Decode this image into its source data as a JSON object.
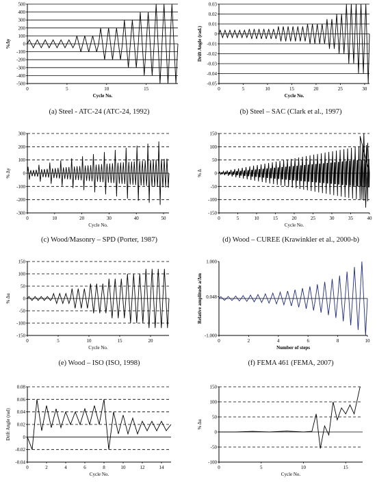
{
  "captions": [
    "(a) Steel - ATC-24 (ATC-24, 1992)",
    "(b) Steel – SAC (Clark et al., 1997)",
    "(c) Wood/Masonry – SPD (Porter, 1987)",
    "(d) Wood – CUREE (Krawinkler et al., 2000-b)",
    "(e) Wood – ISO (ISO, 1998)",
    "(f) FEMA 461 (FEMA, 2007)"
  ],
  "colors": {
    "line": "#000000",
    "blue": "#1f2a7a",
    "grid": "#000000"
  },
  "chart_data": [
    {
      "id": "a",
      "type": "line",
      "xlabel": "Cycle No.",
      "ylabel": "%Δy",
      "xlim": [
        0,
        19
      ],
      "ylim": [
        -500,
        500
      ],
      "xticks": [
        0,
        5,
        10,
        15
      ],
      "yticks": [
        -500,
        -400,
        -300,
        -200,
        -100,
        0,
        100,
        200,
        300,
        400,
        500
      ],
      "grid": "solid-horizontal",
      "amplitude_steps": [
        [
          0,
          50,
          6
        ],
        [
          6,
          100,
          3
        ],
        [
          9,
          200,
          3
        ],
        [
          12,
          300,
          2
        ],
        [
          14,
          400,
          2
        ],
        [
          16,
          500,
          3
        ]
      ]
    },
    {
      "id": "b",
      "type": "line",
      "xlabel": "Cycle No.",
      "ylabel": "Drift Angle (rad.)",
      "xlim": [
        0,
        31
      ],
      "ylim": [
        -0.05,
        0.03
      ],
      "xticks": [
        0,
        5,
        10,
        15,
        20,
        25,
        30
      ],
      "yticks": [
        -0.05,
        -0.04,
        -0.03,
        -0.02,
        -0.01,
        0,
        0.01,
        0.02,
        0.03
      ],
      "ytick_labels": [
        "-0.05",
        "-0.04",
        "-0.03",
        "-0.02",
        "-0.01",
        "0",
        "0.01",
        "0.02",
        "0.03"
      ],
      "grid": "solid-horizontal",
      "amplitude_steps": [
        [
          0,
          0.00375,
          6
        ],
        [
          6,
          0.005,
          6
        ],
        [
          12,
          0.0075,
          6
        ],
        [
          18,
          0.01,
          4
        ],
        [
          22,
          0.015,
          2
        ],
        [
          24,
          0.02,
          2
        ],
        [
          26,
          0.03,
          2
        ],
        [
          28,
          0.04,
          2
        ],
        [
          30,
          0.05,
          1
        ]
      ]
    },
    {
      "id": "c",
      "type": "line",
      "xlabel": "Cycle No.",
      "ylabel": "% Δy",
      "xlim": [
        0,
        52
      ],
      "ylim": [
        -300,
        300
      ],
      "xticks": [
        0,
        10,
        20,
        30,
        40,
        50
      ],
      "yticks": [
        -300,
        -200,
        -100,
        0,
        100,
        200,
        300
      ],
      "grid": "dashed-horizontal"
    },
    {
      "id": "d",
      "type": "line",
      "xlabel": "Cycle No.",
      "ylabel": "% Δ",
      "xlim": [
        0,
        40
      ],
      "ylim": [
        -150,
        150
      ],
      "xticks": [
        0,
        5,
        10,
        15,
        20,
        25,
        30,
        35,
        40
      ],
      "yticks": [
        -150,
        -100,
        -50,
        0,
        50,
        100,
        150
      ],
      "grid": "dashed-horizontal"
    },
    {
      "id": "e",
      "type": "line",
      "xlabel": "Cycle No.",
      "ylabel": "% Δu",
      "xlim": [
        0,
        23
      ],
      "ylim": [
        -150,
        150
      ],
      "xticks": [
        0,
        5,
        10,
        15,
        20
      ],
      "yticks": [
        -150,
        -100,
        -50,
        0,
        50,
        100,
        150
      ],
      "grid": "dashed-horizontal"
    },
    {
      "id": "f",
      "type": "line",
      "xlabel": "Number of steps",
      "ylabel": "Relative amplitude a/Δm",
      "xlim": [
        0,
        10
      ],
      "ylim": [
        -1.0,
        1.0
      ],
      "xticks": [
        0,
        2,
        4,
        6,
        8,
        10
      ],
      "yticks": [
        -1.0,
        0.048,
        1.0
      ],
      "ytick_labels": [
        "-1.000",
        "0.048",
        "1.000"
      ],
      "grid": "none"
    },
    {
      "id": "g",
      "type": "line",
      "xlabel": "Cycle No.",
      "ylabel": "Drift Angle (rad)",
      "xlim": [
        0,
        15
      ],
      "ylim": [
        -0.04,
        0.08
      ],
      "xticks": [
        0,
        2,
        4,
        6,
        8,
        10,
        12,
        14
      ],
      "yticks": [
        -0.04,
        -0.02,
        0,
        0.02,
        0.04,
        0.06,
        0.08
      ],
      "ytick_labels": [
        "-0.04",
        "-0.02",
        "0",
        "0.02",
        "0.04",
        "0.06",
        "0.08"
      ],
      "grid": "dashed-horizontal",
      "points": [
        [
          0,
          0
        ],
        [
          0.5,
          -0.02
        ],
        [
          1,
          0.06
        ],
        [
          1.5,
          0.01
        ],
        [
          2,
          0.05
        ],
        [
          2.5,
          0.015
        ],
        [
          3,
          0.045
        ],
        [
          3.5,
          0.015
        ],
        [
          4,
          0.04
        ],
        [
          4.5,
          0.02
        ],
        [
          5,
          0.04
        ],
        [
          5.5,
          0.02
        ],
        [
          6,
          0.045
        ],
        [
          6.5,
          0.02
        ],
        [
          7,
          0.05
        ],
        [
          7.5,
          0.02
        ],
        [
          8,
          0.06
        ],
        [
          8.5,
          -0.02
        ],
        [
          9,
          0.04
        ],
        [
          9.5,
          0.005
        ],
        [
          10,
          0.035
        ],
        [
          10.5,
          0.005
        ],
        [
          11,
          0.03
        ],
        [
          11.5,
          0.005
        ],
        [
          12,
          0.025
        ],
        [
          12.5,
          0.01
        ],
        [
          13,
          0.025
        ],
        [
          13.5,
          0.01
        ],
        [
          14,
          0.025
        ],
        [
          14.5,
          0.01
        ],
        [
          15,
          0.02
        ]
      ]
    },
    {
      "id": "h",
      "type": "line",
      "xlabel": "Cycle No.",
      "ylabel": "% Δu",
      "xlim": [
        0,
        17
      ],
      "ylim": [
        -100,
        150
      ],
      "xticks": [
        0,
        5,
        10,
        15
      ],
      "yticks": [
        -100,
        -50,
        0,
        50,
        100,
        150
      ],
      "grid": "dashed-horizontal",
      "points": [
        [
          0,
          0
        ],
        [
          2,
          0
        ],
        [
          4,
          2
        ],
        [
          6,
          0
        ],
        [
          8,
          3
        ],
        [
          10,
          0
        ],
        [
          11,
          2
        ],
        [
          11.5,
          60
        ],
        [
          12,
          -55
        ],
        [
          12.5,
          20
        ],
        [
          13,
          -10
        ],
        [
          13.5,
          100
        ],
        [
          14,
          40
        ],
        [
          14.5,
          80
        ],
        [
          15,
          60
        ],
        [
          15.5,
          90
        ],
        [
          16,
          60
        ],
        [
          16.7,
          150
        ]
      ]
    }
  ]
}
